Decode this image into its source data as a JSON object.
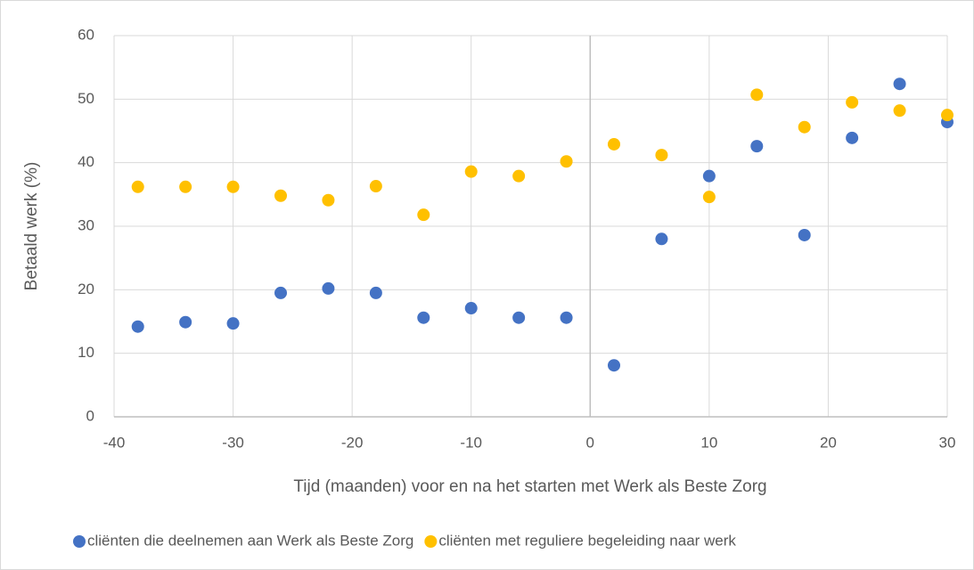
{
  "chart_data": {
    "type": "scatter",
    "xlabel": "Tijd (maanden) voor en na het starten met Werk als Beste Zorg",
    "ylabel": "Betaald werk (%)",
    "xlim": [
      -40,
      30
    ],
    "xticks": [
      -40,
      -30,
      -20,
      -10,
      0,
      10,
      20,
      30
    ],
    "ylim": [
      0,
      60
    ],
    "yticks": [
      0,
      10,
      20,
      30,
      40,
      50,
      60
    ],
    "grid": true,
    "legend": "bottom",
    "series": [
      {
        "name": "cliënten die deelnemen aan Werk als Beste Zorg",
        "color": "#4472c4",
        "x": [
          -38,
          -34,
          -30,
          -26,
          -22,
          -18,
          -14,
          -10,
          -6,
          -2,
          2,
          6,
          10,
          14,
          18,
          22,
          26,
          30
        ],
        "values": [
          14.2,
          14.9,
          14.7,
          19.5,
          20.2,
          19.5,
          15.6,
          17.1,
          15.6,
          15.6,
          8.1,
          28.0,
          37.9,
          42.6,
          28.6,
          43.9,
          52.4,
          46.4
        ]
      },
      {
        "name": "cliënten met reguliere begeleiding naar werk",
        "color": "#ffc000",
        "x": [
          -38,
          -34,
          -30,
          -26,
          -22,
          -18,
          -14,
          -10,
          -6,
          -2,
          2,
          6,
          10,
          14,
          18,
          22,
          26,
          30
        ],
        "values": [
          36.2,
          36.2,
          36.2,
          34.8,
          34.1,
          36.3,
          31.8,
          38.6,
          37.9,
          40.2,
          42.9,
          41.2,
          34.6,
          50.7,
          45.6,
          49.5,
          48.2,
          47.5
        ]
      }
    ]
  }
}
